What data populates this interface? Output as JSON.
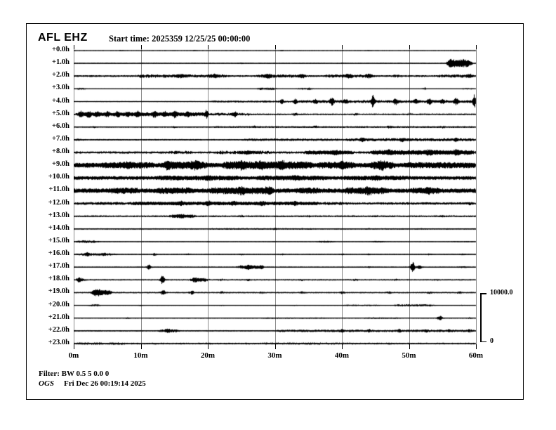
{
  "header": {
    "station": "AFL EHZ",
    "start_time_label": "Start time: 2025359 12/25/25 00:00:00"
  },
  "footer": {
    "filter": "Filter: BW 0.5 5 0.0 0",
    "agency": "OGS",
    "generated": "Fri Dec 26 00:19:14 2025"
  },
  "scale_bar": {
    "top": "10000.0",
    "bottom": "0"
  },
  "colors": {
    "trace": "#000000",
    "grid": "#8a8a8a",
    "background": "#ffffff"
  },
  "chart_data": {
    "type": "line",
    "subtype": "helicorder-seismogram",
    "title": "AFL EHZ",
    "start_time": "2025359 12/25/25 00:00:00",
    "amplitude_scale": {
      "max": 10000.0,
      "min": 0
    },
    "grid": true,
    "x_axis": {
      "tick_labels": [
        "0m",
        "10m",
        "20m",
        "30m",
        "40m",
        "50m",
        "60m"
      ],
      "minutes_per_line": 60
    },
    "row_labels": [
      "+0.0h",
      "+1.0h",
      "+2.0h",
      "+3.0h",
      "+4.0h",
      "+5.0h",
      "+6.0h",
      "+7.0h",
      "+8.0h",
      "+9.0h",
      "+10.0h",
      "+11.0h",
      "+12.0h",
      "+13.0h",
      "+14.0h",
      "+15.0h",
      "+16.0h",
      "+17.0h",
      "+18.0h",
      "+19.0h",
      "+20.0h",
      "+21.0h",
      "+22.0h",
      "+23.0h"
    ],
    "rows": [
      {
        "label": "+0.0h",
        "base": 0.35,
        "segments": [],
        "spikes": [
          [
            7,
            0.5,
            0.3
          ],
          [
            18,
            0.5,
            0.3
          ],
          [
            31,
            0.6,
            0.3
          ],
          [
            44,
            0.4,
            0.3
          ]
        ]
      },
      {
        "label": "+1.0h",
        "base": 0.7,
        "segments": [
          [
            55.3,
            59.6,
            4.2
          ]
        ],
        "spikes": [
          [
            56.3,
            1.5,
            0.5
          ],
          [
            58,
            1.2,
            0.5
          ],
          [
            25,
            0.5,
            0.3
          ],
          [
            40,
            0.5,
            0.3
          ]
        ]
      },
      {
        "label": "+2.0h",
        "base": 1.4,
        "segments": [
          [
            9,
            23,
            1.0
          ],
          [
            27,
            35,
            0.9
          ],
          [
            37,
            45,
            1.0
          ],
          [
            47,
            49.5,
            0.8
          ],
          [
            54,
            60,
            0.9
          ]
        ],
        "spikes": [
          [
            16,
            1.2,
            0.4
          ],
          [
            21,
            1.2,
            0.4
          ],
          [
            29,
            1.5,
            0.4
          ],
          [
            34,
            1.2,
            0.4
          ],
          [
            41,
            1.5,
            0.4
          ],
          [
            44,
            1.2,
            0.4
          ],
          [
            59,
            1.3,
            0.4
          ]
        ]
      },
      {
        "label": "+3.0h",
        "base": 0.5,
        "segments": [
          [
            0,
            2,
            1.0
          ],
          [
            27,
            30.5,
            1.2
          ],
          [
            33,
            36,
            0.8
          ],
          [
            57.5,
            60,
            0.5
          ]
        ],
        "spikes": [
          [
            52.3,
            1.8,
            0.25
          ],
          [
            35,
            0.8,
            0.3
          ]
        ]
      },
      {
        "label": "+4.0h",
        "base": 0.7,
        "segments": [
          [
            20,
            33,
            0.7
          ],
          [
            33,
            60,
            1.3
          ]
        ],
        "spikes": [
          [
            31,
            2.5,
            0.3
          ],
          [
            33,
            3.5,
            0.3
          ],
          [
            36,
            2,
            0.3
          ],
          [
            38.5,
            4.5,
            0.3
          ],
          [
            40.5,
            2,
            0.3
          ],
          [
            44.6,
            9,
            0.22
          ],
          [
            48,
            3,
            0.3
          ],
          [
            51,
            2,
            0.3
          ],
          [
            53,
            3.5,
            0.3
          ],
          [
            55,
            2,
            0.3
          ],
          [
            57,
            3.5,
            0.3
          ],
          [
            59.7,
            9,
            0.22
          ]
        ]
      },
      {
        "label": "+5.0h",
        "base": 1.1,
        "segments": [
          [
            0,
            20,
            1.6
          ],
          [
            20,
            27,
            0.9
          ]
        ],
        "spikes": [
          [
            1,
            2.5,
            0.3
          ],
          [
            2.2,
            3,
            0.3
          ],
          [
            3.5,
            2.5,
            0.3
          ],
          [
            5,
            2,
            0.3
          ],
          [
            6.5,
            2.5,
            0.3
          ],
          [
            8,
            2,
            0.3
          ],
          [
            9.5,
            2.5,
            0.3
          ],
          [
            12,
            3,
            0.3
          ],
          [
            13.5,
            2.5,
            0.3
          ],
          [
            15,
            3.5,
            0.3
          ],
          [
            17,
            2,
            0.3
          ],
          [
            19.8,
            5.5,
            0.25
          ],
          [
            24,
            2.5,
            0.3
          ],
          [
            33,
            1.5,
            0.3
          ],
          [
            42,
            1.2,
            0.3
          ],
          [
            50,
            1,
            0.3
          ]
        ]
      },
      {
        "label": "+6.0h",
        "base": 0.9,
        "segments": [
          [
            20,
            60,
            0.4
          ]
        ],
        "spikes": [
          [
            3,
            0.8,
            0.3
          ],
          [
            15,
            0.8,
            0.3
          ],
          [
            27,
            1,
            0.3
          ],
          [
            36,
            1,
            0.3
          ],
          [
            47,
            0.9,
            0.3
          ],
          [
            55,
            0.9,
            0.3
          ]
        ]
      },
      {
        "label": "+7.0h",
        "base": 1.1,
        "segments": [
          [
            0,
            1.5,
            1.2
          ],
          [
            25,
            40,
            0.7
          ],
          [
            40,
            60,
            1.1
          ]
        ],
        "spikes": [
          [
            43,
            1.8,
            0.3
          ],
          [
            49,
            1.2,
            0.3
          ],
          [
            57,
            1.2,
            0.3
          ]
        ]
      },
      {
        "label": "+8.0h",
        "base": 1.7,
        "segments": [
          [
            14,
            18,
            0.8
          ],
          [
            21,
            30,
            0.8
          ],
          [
            34,
            42,
            1.2
          ],
          [
            44,
            60,
            1.7
          ]
        ],
        "spikes": [
          [
            26,
            1.3,
            0.4
          ],
          [
            39,
            1.5,
            0.4
          ],
          [
            47,
            1.8,
            0.4
          ],
          [
            53,
            1.5,
            0.4
          ],
          [
            57,
            1.6,
            0.4
          ]
        ]
      },
      {
        "label": "+9.0h",
        "base": 3.4,
        "segments": [
          [
            4,
            12,
            1.2
          ],
          [
            13,
            20,
            2.2
          ],
          [
            22,
            35,
            2.4
          ],
          [
            36,
            42,
            1.6
          ],
          [
            44,
            48,
            2.2
          ],
          [
            49,
            60,
            1.0
          ]
        ],
        "spikes": [
          [
            8,
            1.5,
            0.5
          ],
          [
            14,
            2,
            0.5
          ],
          [
            18,
            2,
            0.5
          ],
          [
            25,
            2,
            0.5
          ],
          [
            28,
            2,
            0.5
          ],
          [
            31,
            2,
            0.5
          ],
          [
            35,
            1.5,
            0.5
          ],
          [
            40,
            1.5,
            0.5
          ],
          [
            46,
            2.5,
            0.5
          ]
        ]
      },
      {
        "label": "+10.0h",
        "base": 2.6,
        "segments": [
          [
            12,
            25,
            0.8
          ],
          [
            27,
            38,
            0.8
          ],
          [
            40,
            50,
            0.6
          ]
        ],
        "spikes": [
          [
            20,
            1,
            0.5
          ],
          [
            33,
            1,
            0.5
          ],
          [
            45,
            1,
            0.5
          ]
        ]
      },
      {
        "label": "+11.0h",
        "base": 3.2,
        "segments": [
          [
            5,
            10,
            1.2
          ],
          [
            12,
            18,
            1.4
          ],
          [
            20,
            30,
            1.8
          ],
          [
            33,
            37,
            1.4
          ],
          [
            40,
            47,
            1.8
          ],
          [
            50,
            55,
            1.2
          ]
        ],
        "spikes": [
          [
            25,
            2,
            0.5
          ],
          [
            29,
            1.8,
            0.5
          ],
          [
            44,
            2,
            0.5
          ],
          [
            53,
            1.5,
            0.5
          ]
        ]
      },
      {
        "label": "+12.0h",
        "base": 1.6,
        "segments": [
          [
            0,
            8,
            0.6
          ],
          [
            8,
            37,
            1.0
          ],
          [
            37,
            41,
            0.8
          ],
          [
            41,
            60,
            0.2
          ]
        ],
        "spikes": [
          [
            16,
            1.5,
            0.4
          ],
          [
            20,
            2,
            0.4
          ],
          [
            24,
            1.2,
            0.4
          ],
          [
            28,
            1.2,
            0.4
          ],
          [
            33,
            1,
            0.4
          ],
          [
            59,
            0.8,
            0.4
          ]
        ]
      },
      {
        "label": "+13.0h",
        "base": 1.2,
        "segments": [
          [
            14,
            18.5,
            1.3
          ]
        ],
        "spikes": [
          [
            16,
            1.2,
            0.4
          ],
          [
            25,
            0.8,
            0.3
          ],
          [
            35,
            0.6,
            0.3
          ],
          [
            45,
            0.5,
            0.3
          ],
          [
            55,
            0.5,
            0.3
          ]
        ]
      },
      {
        "label": "+14.0h",
        "base": 0.95,
        "segments": [
          [
            20,
            36,
            0.25
          ]
        ],
        "spikes": [
          [
            10,
            0.5,
            0.3
          ],
          [
            30,
            0.5,
            0.3
          ],
          [
            44,
            0.5,
            0.3
          ],
          [
            52,
            0.4,
            0.3
          ]
        ]
      },
      {
        "label": "+15.0h",
        "base": 0.55,
        "segments": [
          [
            0,
            4,
            1.3
          ],
          [
            36,
            39,
            0.9
          ],
          [
            44,
            46.5,
            0.7
          ],
          [
            56,
            60,
            0.35
          ]
        ],
        "spikes": [
          [
            20,
            0.4,
            0.3
          ],
          [
            30,
            0.4,
            0.3
          ]
        ]
      },
      {
        "label": "+16.0h",
        "base": 0.75,
        "segments": [
          [
            0,
            6.5,
            1.0
          ]
        ],
        "spikes": [
          [
            2,
            1.5,
            0.3
          ],
          [
            4.5,
            1.3,
            0.3
          ],
          [
            12,
            1.3,
            0.3
          ],
          [
            17,
            0.9,
            0.3
          ],
          [
            25,
            0.7,
            0.3
          ],
          [
            31,
            0.8,
            0.3
          ],
          [
            40,
            0.8,
            0.3
          ],
          [
            44,
            0.7,
            0.3
          ],
          [
            53,
            0.7,
            0.3
          ],
          [
            58,
            0.8,
            0.3
          ]
        ]
      },
      {
        "label": "+17.0h",
        "base": 0.75,
        "segments": [
          [
            24,
            28.5,
            1.8
          ],
          [
            57,
            59,
            0.6
          ]
        ],
        "spikes": [
          [
            11.2,
            3,
            0.35
          ],
          [
            26,
            1.2,
            0.3
          ],
          [
            28,
            1.2,
            0.3
          ],
          [
            50.5,
            7.5,
            0.3
          ],
          [
            51.5,
            2,
            0.4
          ],
          [
            44,
            0.6,
            0.3
          ]
        ]
      },
      {
        "label": "+18.0h",
        "base": 0.95,
        "segments": [
          [
            0,
            2,
            1.5
          ],
          [
            17,
            20.5,
            1.6
          ]
        ],
        "spikes": [
          [
            0.7,
            1.5,
            0.3
          ],
          [
            13.2,
            5.5,
            0.3
          ],
          [
            18,
            1.5,
            0.3
          ],
          [
            22,
            1.2,
            0.3
          ],
          [
            26,
            0.8,
            0.3
          ],
          [
            34,
            0.7,
            0.3
          ],
          [
            42,
            1,
            0.3
          ],
          [
            48,
            1,
            0.3
          ],
          [
            54,
            0.8,
            0.3
          ]
        ]
      },
      {
        "label": "+19.0h",
        "base": 0.95,
        "segments": [
          [
            2.3,
            6,
            2.8
          ]
        ],
        "spikes": [
          [
            3.5,
            2,
            0.5
          ],
          [
            13.3,
            2.8,
            0.35
          ],
          [
            17.6,
            2.2,
            0.35
          ],
          [
            22,
            1.2,
            0.3
          ],
          [
            28,
            1.2,
            0.3
          ],
          [
            34,
            1,
            0.3
          ],
          [
            40,
            1.3,
            0.3
          ],
          [
            47,
            1.3,
            0.3
          ],
          [
            53,
            1.2,
            0.3
          ],
          [
            57.5,
            1.3,
            0.3
          ]
        ]
      },
      {
        "label": "+20.0h",
        "base": 0.55,
        "segments": [
          [
            2,
            4.2,
            1.1
          ],
          [
            40,
            46,
            0.5
          ],
          [
            47.5,
            54,
            1.0
          ]
        ],
        "spikes": [
          [
            10,
            0.5,
            0.3
          ],
          [
            22,
            0.4,
            0.3
          ],
          [
            33,
            0.4,
            0.3
          ],
          [
            58,
            0.4,
            0.3
          ]
        ]
      },
      {
        "label": "+21.0h",
        "base": 0.65,
        "segments": [
          [
            28,
            38,
            0.3
          ],
          [
            43,
            49,
            0.4
          ]
        ],
        "spikes": [
          [
            8,
            0.6,
            0.3
          ],
          [
            17,
            0.5,
            0.3
          ],
          [
            54.6,
            2.6,
            0.4
          ],
          [
            59,
            0.6,
            0.3
          ]
        ]
      },
      {
        "label": "+22.0h",
        "base": 0.95,
        "segments": [
          [
            12.5,
            16,
            1.5
          ],
          [
            30,
            60,
            0.8
          ]
        ],
        "spikes": [
          [
            14,
            1.2,
            0.3
          ],
          [
            40,
            1.2,
            0.3
          ],
          [
            44,
            1.2,
            0.3
          ],
          [
            48.5,
            1.3,
            0.3
          ],
          [
            52.5,
            1,
            0.3
          ],
          [
            56,
            1.1,
            0.3
          ],
          [
            59,
            1,
            0.3
          ]
        ]
      },
      {
        "label": "+23.0h",
        "base": 1.25,
        "segments": [
          [
            0,
            8,
            0.5
          ],
          [
            28,
            42,
            0.3
          ]
        ],
        "spikes": [
          [
            12,
            0.7,
            0.3
          ],
          [
            20,
            0.6,
            0.3
          ],
          [
            47,
            0.6,
            0.3
          ]
        ]
      }
    ]
  }
}
